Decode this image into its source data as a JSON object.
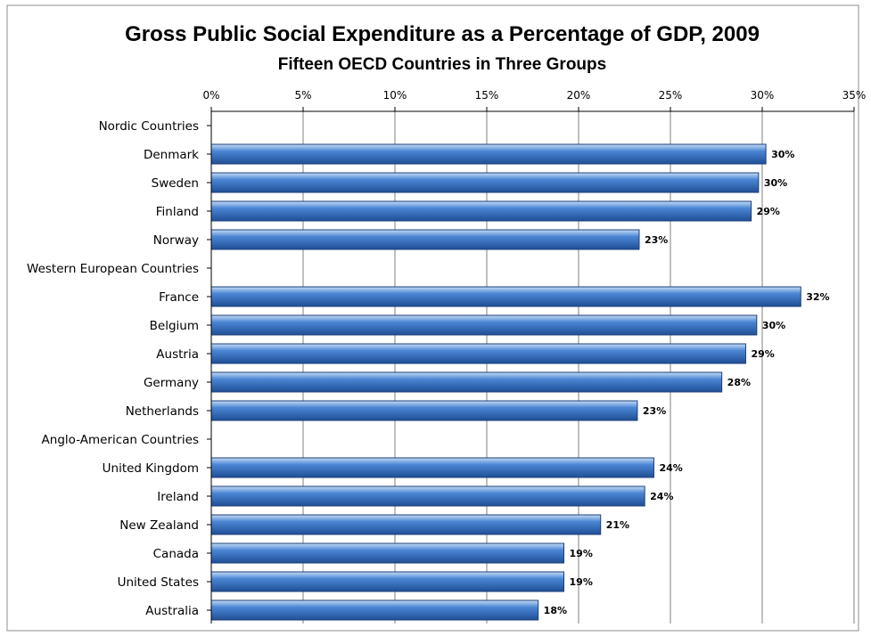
{
  "chart_data": {
    "type": "bar",
    "orientation": "horizontal",
    "title": "Gross Public Social Expenditure as a Percentage of GDP, 2009",
    "subtitle": "Fifteen OECD Countries in Three Groups",
    "xlabel": "",
    "ylabel": "",
    "xlim": [
      0,
      35
    ],
    "x_ticks": [
      "0%",
      "5%",
      "10%",
      "15%",
      "20%",
      "25%",
      "30%",
      "35%"
    ],
    "x_tick_values": [
      0,
      5,
      10,
      15,
      20,
      25,
      30,
      35
    ],
    "x_axis_position": "top",
    "grid": true,
    "legend": "none",
    "categories": [
      "Nordic Countries",
      "Denmark",
      "Sweden",
      "Finland",
      "Norway",
      "Western European Countries",
      "France",
      "Belgium",
      "Austria",
      "Germany",
      "Netherlands",
      "Anglo-American Countries",
      "United Kingdom",
      "Ireland",
      "New Zealand",
      "Canada",
      "United States",
      "Australia"
    ],
    "values": [
      null,
      30.2,
      29.8,
      29.4,
      23.3,
      null,
      32.1,
      29.7,
      29.1,
      27.8,
      23.2,
      null,
      24.1,
      23.6,
      21.2,
      19.2,
      19.2,
      17.8
    ],
    "data_labels": [
      "",
      "30%",
      "30%",
      "29%",
      "23%",
      "",
      "32%",
      "30%",
      "29%",
      "28%",
      "23%",
      "",
      "24%",
      "24%",
      "21%",
      "19%",
      "19%",
      "18%"
    ],
    "colors": {
      "bar_fill": "#4a86d4",
      "bar_highlight": "#c4dbf6",
      "bar_shadow": "#1f4f96",
      "bar_edge": "#1c3f7a",
      "grid": "#808080",
      "axis": "#000000"
    }
  }
}
